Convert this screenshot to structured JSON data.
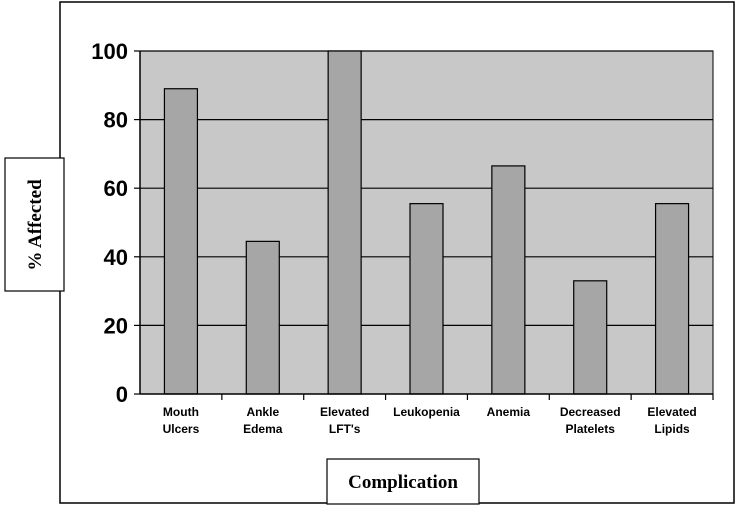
{
  "chart_data": {
    "type": "bar",
    "categories": [
      [
        "Mouth",
        "Ulcers"
      ],
      [
        "Ankle",
        "Edema"
      ],
      [
        "Elevated",
        "LFT's"
      ],
      [
        "Leukopenia"
      ],
      [
        "Anemia"
      ],
      [
        "Decreased",
        "Platelets"
      ],
      [
        "Elevated",
        "Lipids"
      ]
    ],
    "values": [
      89,
      44.5,
      100,
      55.5,
      66.5,
      33,
      55.5
    ],
    "title": "",
    "xlabel": "Complication",
    "ylabel": "% Affected",
    "ylim": [
      0,
      100
    ],
    "yticks": [
      0,
      20,
      40,
      60,
      80,
      100
    ],
    "grid": true,
    "legend": "none",
    "colors": {
      "plot_background": "#c8c8c8",
      "bar_fill": "#a6a6a6",
      "bar_stroke": "#000000",
      "grid": "#000000"
    }
  }
}
